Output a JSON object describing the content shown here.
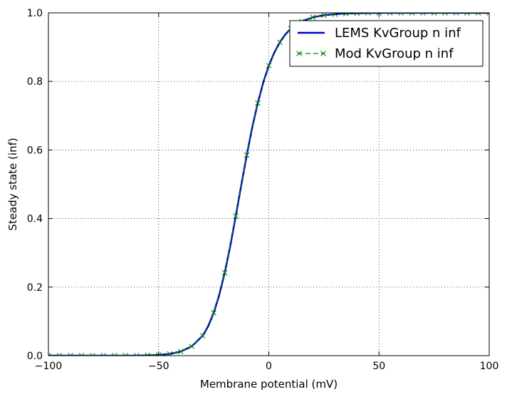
{
  "chart_data": {
    "type": "line",
    "xlabel": "Membrane potential (mV)",
    "ylabel": "Steady state (inf)",
    "xlim": [
      -100,
      100
    ],
    "ylim": [
      0.0,
      1.0
    ],
    "xticks": [
      -100,
      -50,
      0,
      50,
      100
    ],
    "xtick_labels": [
      "−100",
      "−50",
      "0",
      "50",
      "100"
    ],
    "yticks": [
      0.0,
      0.2,
      0.4,
      0.6,
      0.8,
      1.0
    ],
    "ytick_labels": [
      "0.0",
      "0.2",
      "0.4",
      "0.6",
      "0.8",
      "1.0"
    ],
    "grid": true,
    "legend_position": "top-right",
    "series": [
      {
        "name": "LEMS KvGroup n inf",
        "style": "solid",
        "color": "#0000cc",
        "x": [
          -100,
          -90,
          -80,
          -70,
          -60,
          -55,
          -50,
          -45,
          -40,
          -35,
          -30,
          -27.5,
          -25,
          -22.5,
          -20,
          -17.5,
          -15,
          -12.5,
          -10,
          -7.5,
          -5,
          -2.5,
          0,
          2.5,
          5,
          7.5,
          10,
          15,
          20,
          25,
          30,
          35,
          40,
          50,
          60,
          70,
          80,
          90,
          100
        ],
        "y": [
          0.0,
          0.0,
          0.0,
          0.0,
          0.0,
          0.001,
          0.002,
          0.005,
          0.012,
          0.027,
          0.058,
          0.086,
          0.125,
          0.177,
          0.242,
          0.32,
          0.407,
          0.497,
          0.585,
          0.666,
          0.737,
          0.797,
          0.846,
          0.884,
          0.914,
          0.937,
          0.954,
          0.975,
          0.987,
          0.993,
          0.996,
          0.998,
          0.999,
          1.0,
          1.0,
          1.0,
          1.0,
          1.0,
          1.0
        ]
      },
      {
        "name": "Mod KvGroup n inf",
        "style": "dashed-x",
        "color": "#008000",
        "x": [
          -100,
          -95,
          -90,
          -85,
          -80,
          -75,
          -70,
          -65,
          -60,
          -55,
          -50,
          -45,
          -40,
          -35,
          -30,
          -25,
          -20,
          -15,
          -10,
          -5,
          0,
          5,
          10,
          15,
          20,
          25,
          30,
          35,
          40,
          45,
          50,
          55,
          60,
          65,
          70,
          75,
          80,
          85,
          90,
          95,
          100
        ],
        "y": [
          0.0,
          0.0,
          0.0,
          0.0,
          0.0,
          0.0,
          0.0,
          0.0,
          0.0,
          0.001,
          0.002,
          0.005,
          0.012,
          0.027,
          0.058,
          0.125,
          0.242,
          0.407,
          0.585,
          0.737,
          0.846,
          0.914,
          0.954,
          0.975,
          0.987,
          0.993,
          0.996,
          0.998,
          0.999,
          1.0,
          1.0,
          1.0,
          1.0,
          1.0,
          1.0,
          1.0,
          1.0,
          1.0,
          1.0,
          1.0,
          1.0
        ]
      }
    ]
  }
}
